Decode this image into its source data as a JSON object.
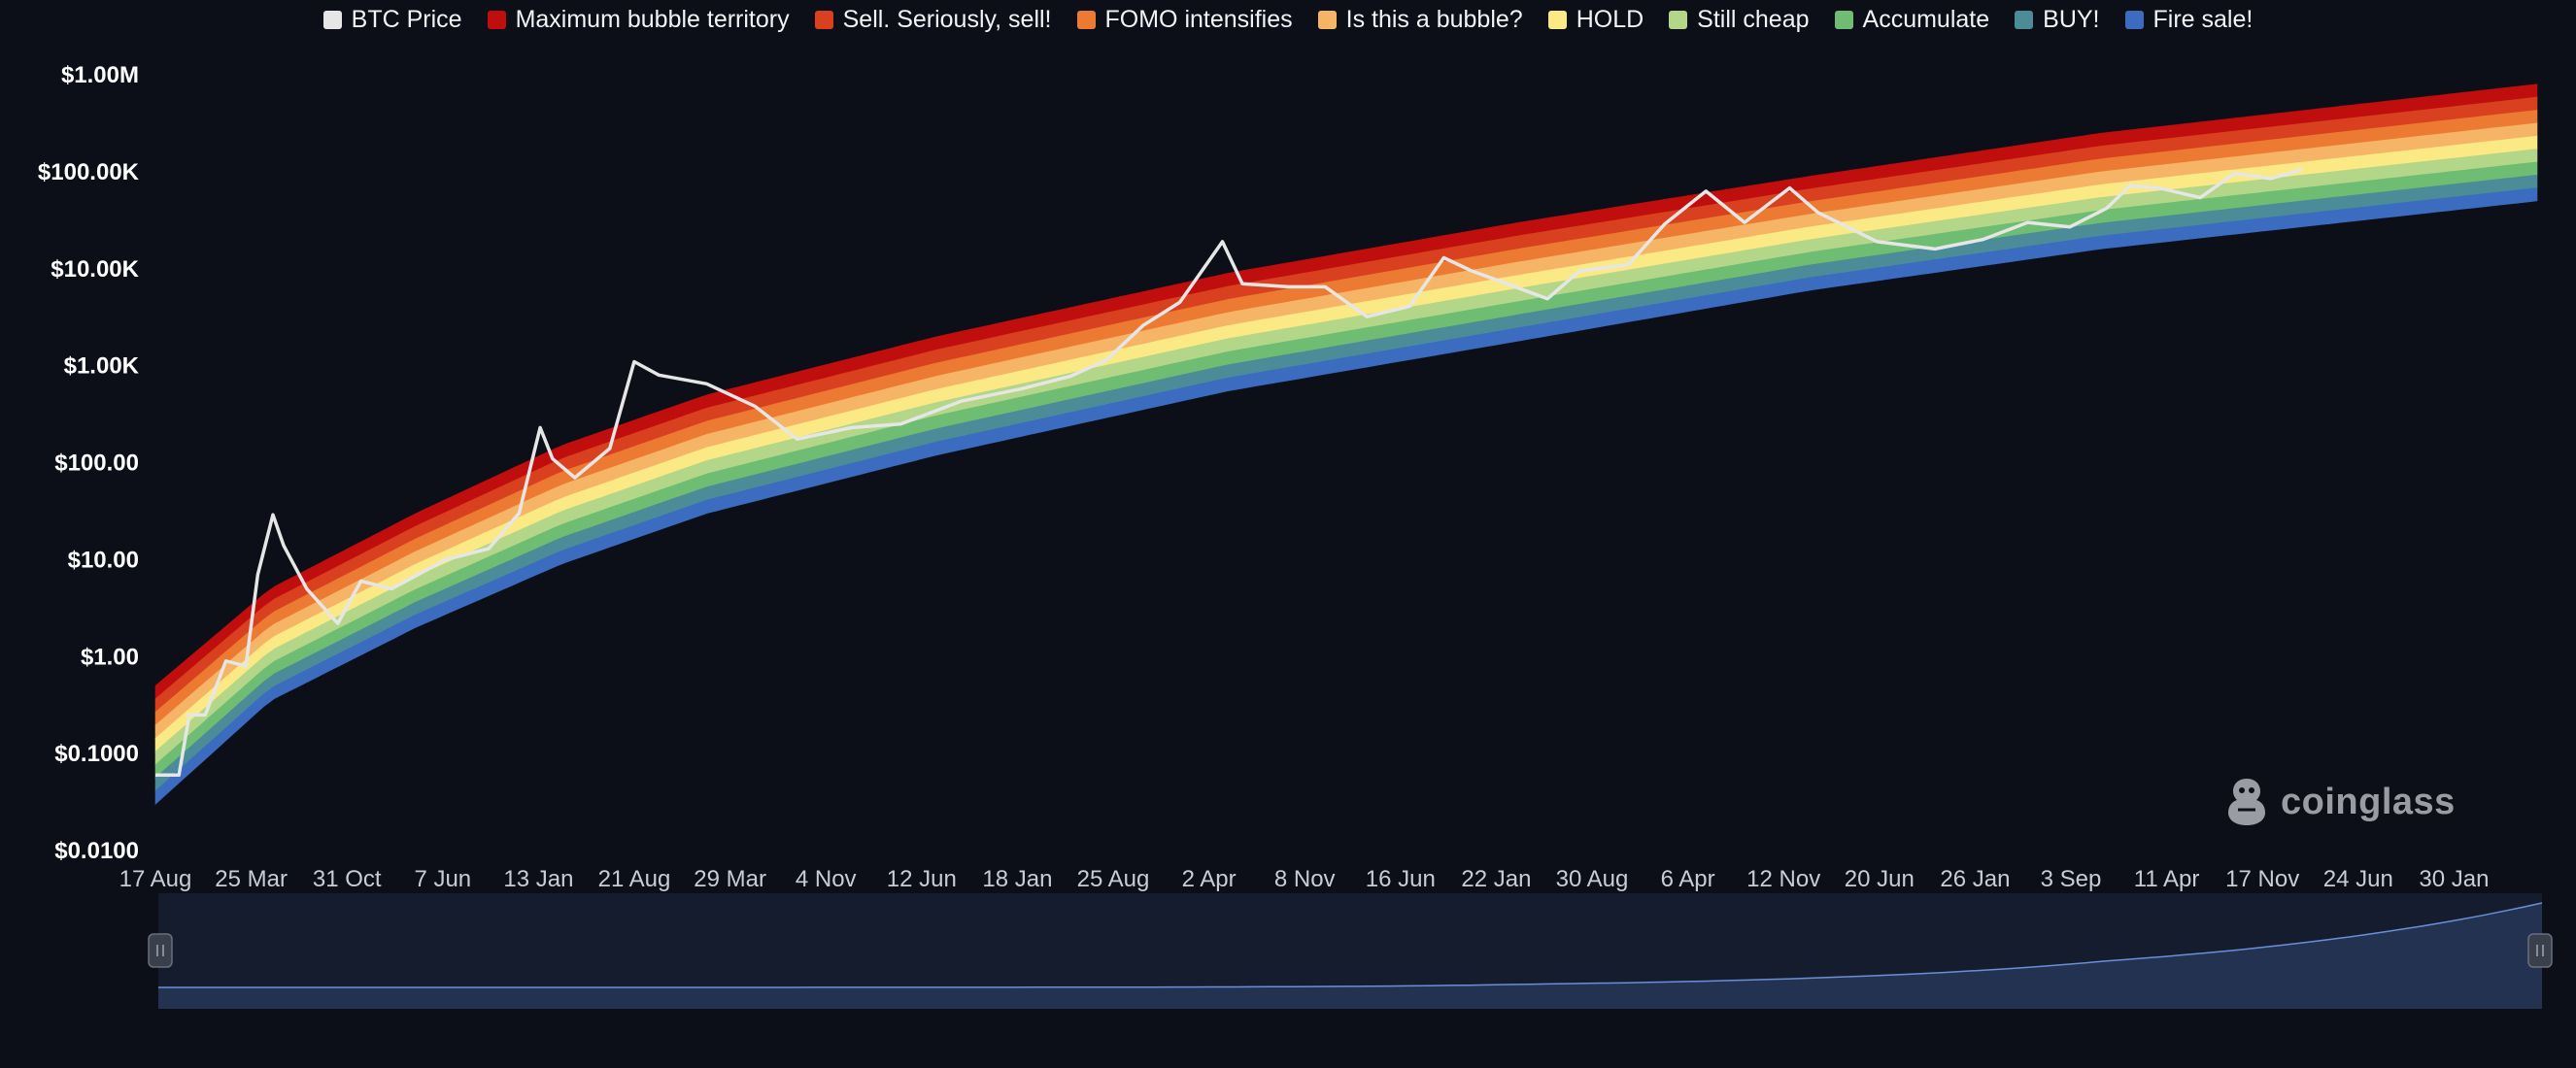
{
  "legend": [
    {
      "label": "BTC Price",
      "color": "#e6e6e6"
    },
    {
      "label": "Maximum bubble territory",
      "color": "#c00d0d"
    },
    {
      "label": "Sell. Seriously, sell!",
      "color": "#d8401f"
    },
    {
      "label": "FOMO intensifies",
      "color": "#ec7a32"
    },
    {
      "label": "Is this a bubble?",
      "color": "#f6b466"
    },
    {
      "label": "HOLD",
      "color": "#fbe986"
    },
    {
      "label": "Still cheap",
      "color": "#b4d689"
    },
    {
      "label": "Accumulate",
      "color": "#6ebd72"
    },
    {
      "label": "BUY!",
      "color": "#4b8c98"
    },
    {
      "label": "Fire sale!",
      "color": "#3b6cc0"
    }
  ],
  "watermark": "coinglass",
  "chart_data": {
    "type": "area",
    "title": "",
    "xlabel": "",
    "ylabel": "",
    "y_scale": "log",
    "grid": false,
    "legend_position": "top-center",
    "y_tick_labels": [
      "$1.00M",
      "$100.00K",
      "$10.00K",
      "$1.00K",
      "$100.00",
      "$10.00",
      "$1.00",
      "$0.1000",
      "$0.0100"
    ],
    "y_tick_values": [
      1000000,
      100000,
      10000,
      1000,
      100,
      10,
      1,
      0.1,
      0.01
    ],
    "x_tick_labels": [
      "17 Aug",
      "25 Mar",
      "31 Oct",
      "7 Jun",
      "13 Jan",
      "21 Aug",
      "29 Mar",
      "4 Nov",
      "12 Jun",
      "18 Jan",
      "25 Aug",
      "2 Apr",
      "8 Nov",
      "16 Jun",
      "22 Jan",
      "30 Aug",
      "6 Apr",
      "12 Nov",
      "20 Jun",
      "26 Jan",
      "3 Sep",
      "11 Apr",
      "17 Nov",
      "24 Jun",
      "30 Jan"
    ],
    "x_range": [
      "2010-08-17",
      "2026-12-31"
    ],
    "ylim": [
      0.01,
      1000000
    ],
    "bands": [
      {
        "name": "Maximum bubble territory",
        "color": "#c00d0d"
      },
      {
        "name": "Sell. Seriously, sell!",
        "color": "#d8401f"
      },
      {
        "name": "FOMO intensifies",
        "color": "#ec7a32"
      },
      {
        "name": "Is this a bubble?",
        "color": "#f6b466"
      },
      {
        "name": "HOLD",
        "color": "#fbe986"
      },
      {
        "name": "Still cheap",
        "color": "#b4d689"
      },
      {
        "name": "Accumulate",
        "color": "#6ebd72"
      },
      {
        "name": "BUY!",
        "color": "#4b8c98"
      },
      {
        "name": "Fire sale!",
        "color": "#3b6cc0"
      }
    ],
    "band_upper": {
      "x": [
        "2010-08-17",
        "2011-06-01",
        "2012-06-01",
        "2013-06-01",
        "2014-06-01",
        "2016-01-01",
        "2018-01-01",
        "2020-01-01",
        "2022-01-01",
        "2024-01-01",
        "2026-12-31"
      ],
      "y": [
        0.5,
        5,
        30,
        150,
        500,
        2000,
        9000,
        30000,
        90000,
        250000,
        800000
      ]
    },
    "band_lower": {
      "x": [
        "2010-08-17",
        "2011-06-01",
        "2012-06-01",
        "2013-06-01",
        "2014-06-01",
        "2016-01-01",
        "2018-01-01",
        "2020-01-01",
        "2022-01-01",
        "2024-01-01",
        "2026-12-31"
      ],
      "y": [
        0.03,
        0.35,
        2,
        9,
        30,
        120,
        550,
        1800,
        6000,
        16000,
        50000
      ]
    },
    "series": [
      {
        "name": "BTC Price",
        "color": "#e6e6e6",
        "x": [
          "2010-08-17",
          "2010-10-15",
          "2010-11-10",
          "2010-12-20",
          "2011-02-10",
          "2011-04-01",
          "2011-05-01",
          "2011-06-08",
          "2011-07-05",
          "2011-09-01",
          "2011-11-18",
          "2012-01-15",
          "2012-04-01",
          "2012-08-15",
          "2012-12-01",
          "2013-02-15",
          "2013-04-09",
          "2013-05-10",
          "2013-07-05",
          "2013-10-01",
          "2013-12-01",
          "2014-02-01",
          "2014-06-01",
          "2014-10-01",
          "2015-01-14",
          "2015-06-01",
          "2015-10-01",
          "2016-03-01",
          "2016-08-01",
          "2016-12-01",
          "2017-03-01",
          "2017-06-01",
          "2017-09-01",
          "2017-12-17",
          "2018-02-05",
          "2018-06-01",
          "2018-09-01",
          "2018-12-15",
          "2019-04-01",
          "2019-06-26",
          "2019-09-01",
          "2019-12-18",
          "2020-03-12",
          "2020-06-01",
          "2020-10-01",
          "2021-01-01",
          "2021-04-14",
          "2021-07-20",
          "2021-11-10",
          "2022-01-20",
          "2022-06-18",
          "2022-11-10",
          "2023-03-10",
          "2023-07-01",
          "2023-10-15",
          "2024-01-15",
          "2024-03-14",
          "2024-06-01",
          "2024-09-06",
          "2024-12-01",
          "2025-03-01",
          "2025-05-20"
        ],
        "y": [
          0.06,
          0.06,
          0.25,
          0.25,
          0.9,
          0.8,
          7,
          29,
          14,
          5,
          2.2,
          6,
          5,
          10,
          13,
          30,
          230,
          110,
          70,
          140,
          1100,
          800,
          650,
          380,
          175,
          230,
          250,
          430,
          580,
          780,
          1150,
          2600,
          4500,
          19000,
          7000,
          6500,
          6500,
          3200,
          4100,
          13000,
          9600,
          6600,
          4900,
          9500,
          11000,
          29000,
          63000,
          30000,
          68000,
          38000,
          19000,
          16000,
          20000,
          30000,
          27000,
          42000,
          72000,
          67000,
          54000,
          96000,
          85000,
          105000
        ]
      }
    ]
  },
  "navigator": {
    "x": [
      "2010-08-17",
      "2014-01-01",
      "2017-01-01",
      "2020-01-01",
      "2022-01-01",
      "2024-01-01",
      "2026-12-31"
    ],
    "y": [
      0.5,
      200,
      2000,
      30000,
      90000,
      250000,
      800000
    ]
  }
}
